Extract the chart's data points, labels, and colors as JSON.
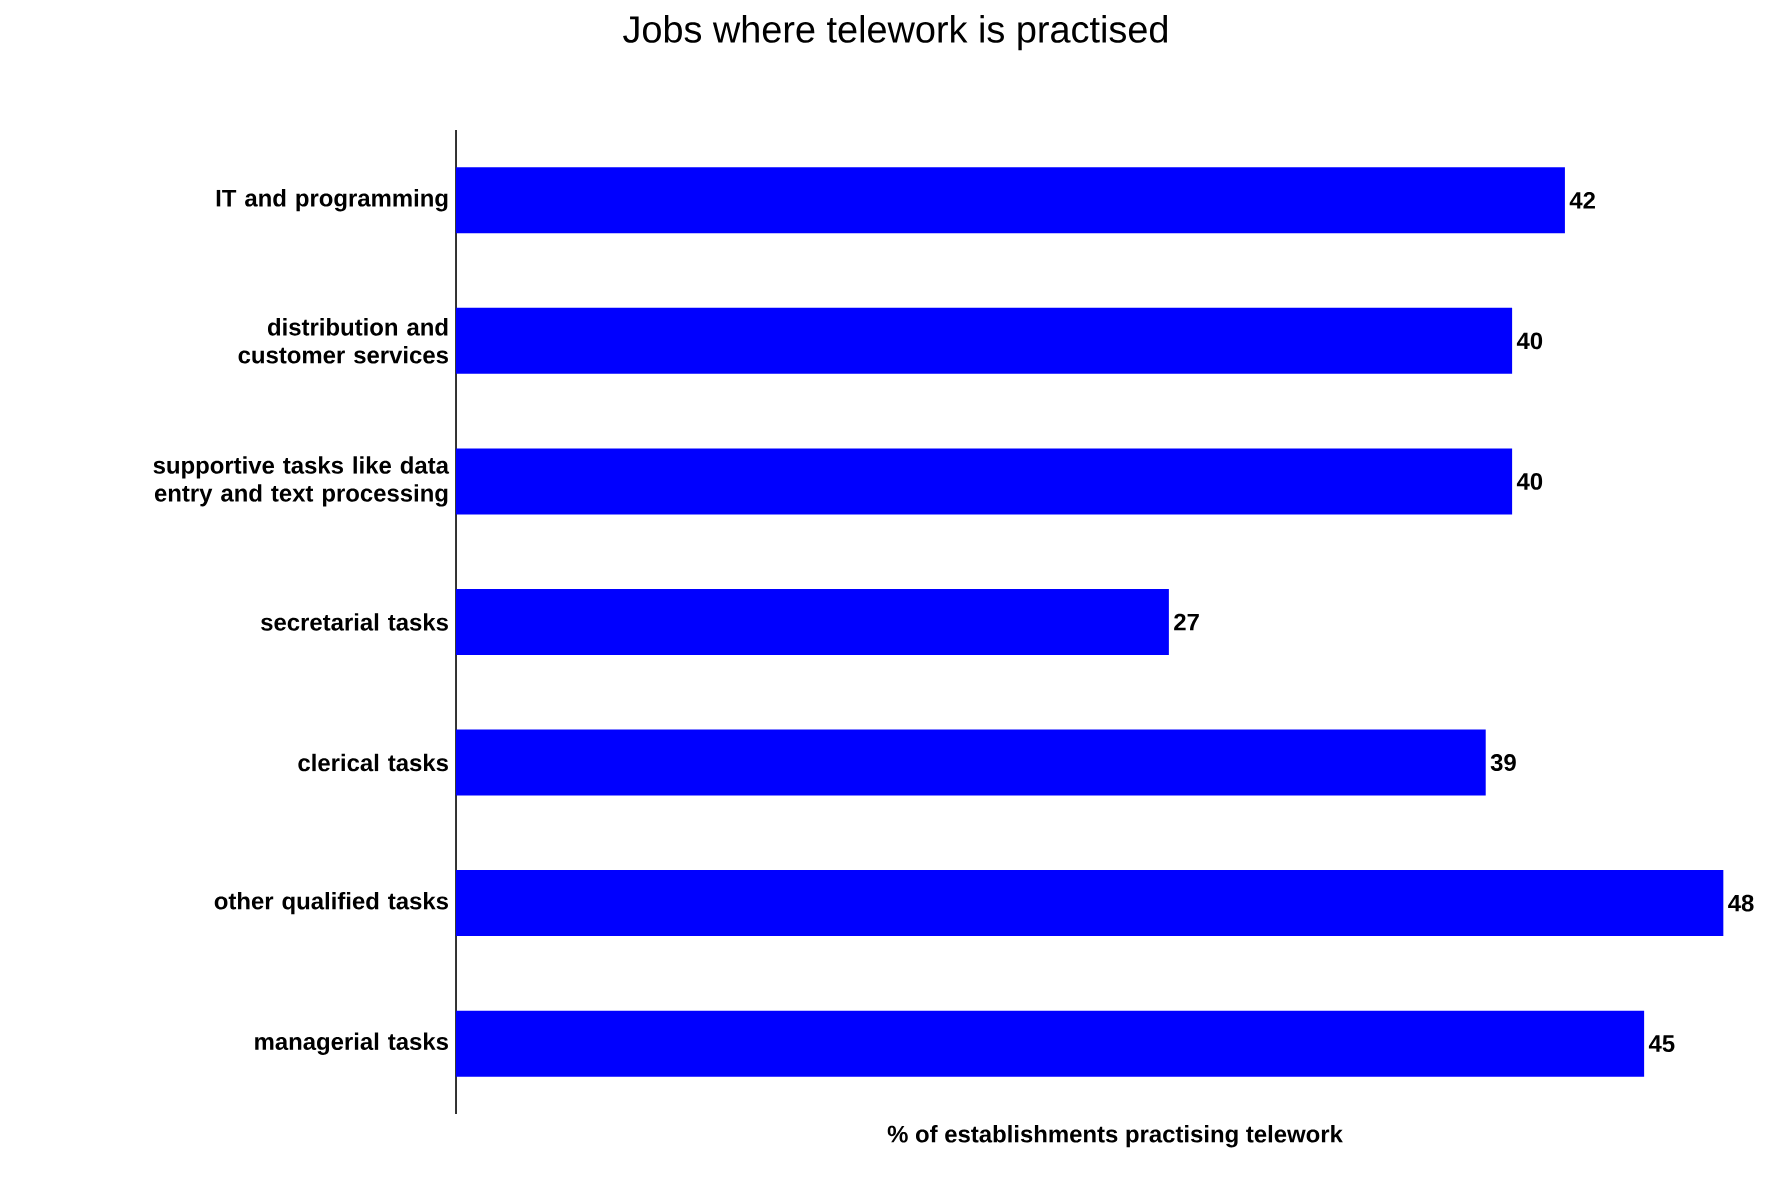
{
  "chart_data": {
    "type": "bar",
    "orientation": "horizontal",
    "title": "Jobs where telework is practised",
    "xlabel": "% of establishments practising telework",
    "categories": [
      "IT and programming",
      "distribution and customer services",
      "supportive tasks like data entry and text processing",
      "secretarial tasks",
      "clerical tasks",
      "other qualified tasks",
      "managerial tasks"
    ],
    "values": [
      42,
      40,
      40,
      27,
      39,
      48,
      45
    ],
    "color": "#0000ff",
    "data_labels": true,
    "tick_labels": "y"
  }
}
